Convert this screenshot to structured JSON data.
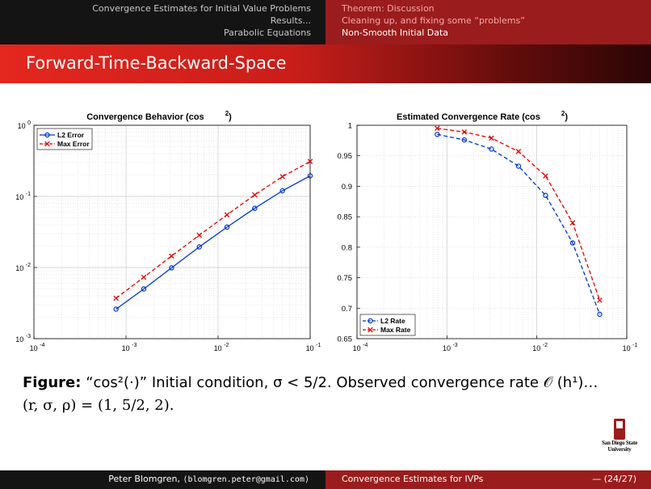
{
  "header": {
    "left_sections": [
      "Convergence Estimates for Initial Value Problems",
      "Results...",
      "Parabolic Equations"
    ],
    "right_sections": [
      "Theorem: Discussion",
      "Cleaning up, and fixing some “problems”",
      "Non-Smooth Initial Data"
    ],
    "active_right_index": 2
  },
  "frame_title": "Forward-Time-Backward-Space",
  "colors": {
    "dark_bar": "#141414",
    "red_bar": "#9b1c1c",
    "title_red": "#e4271f",
    "l2_series": "#0033cc",
    "max_series": "#e00000"
  },
  "chart_data": [
    {
      "type": "line",
      "title_left": "Convergence Behavior (cos",
      "title_sup": "2",
      "title_right": ")",
      "xscale": "log",
      "yscale": "log",
      "xlim": [
        0.0001,
        0.1
      ],
      "ylim": [
        0.001,
        1
      ],
      "x_ticks": [
        {
          "base": "10",
          "exp": "-4"
        },
        {
          "base": "10",
          "exp": "-3"
        },
        {
          "base": "10",
          "exp": "-2"
        },
        {
          "base": "10",
          "exp": "-1"
        }
      ],
      "y_ticks": [
        {
          "base": "10",
          "exp": "0"
        },
        {
          "base": "10",
          "exp": "-1"
        },
        {
          "base": "10",
          "exp": "-2"
        },
        {
          "base": "10",
          "exp": "-3"
        }
      ],
      "grid": true,
      "legend_position": "top-left",
      "series": [
        {
          "name": "L2 Error",
          "style": "solid-circle",
          "x": [
            0.00078,
            0.00156,
            0.003125,
            0.00625,
            0.0125,
            0.025,
            0.05,
            0.1
          ],
          "y": [
            0.0026,
            0.005,
            0.0099,
            0.0195,
            0.037,
            0.068,
            0.12,
            0.195
          ]
        },
        {
          "name": "Max Error",
          "style": "dashed-x",
          "x": [
            0.00078,
            0.00156,
            0.003125,
            0.00625,
            0.0125,
            0.025,
            0.05,
            0.1
          ],
          "y": [
            0.0037,
            0.0073,
            0.0145,
            0.0285,
            0.055,
            0.105,
            0.19,
            0.31
          ]
        }
      ]
    },
    {
      "type": "line",
      "title_left": "Estimated Convergence Rate (cos",
      "title_sup": "2",
      "title_right": ")",
      "xscale": "log",
      "yscale": "linear",
      "xlim": [
        0.0001,
        0.1
      ],
      "ylim": [
        0.65,
        1
      ],
      "x_ticks": [
        {
          "base": "10",
          "exp": "-4"
        },
        {
          "base": "10",
          "exp": "-3"
        },
        {
          "base": "10",
          "exp": "-2"
        },
        {
          "base": "10",
          "exp": "-1"
        }
      ],
      "y_ticks": [
        "1",
        "0.95",
        "0.9",
        "0.85",
        "0.8",
        "0.75",
        "0.7",
        "0.65"
      ],
      "y_tick_values": [
        1,
        0.95,
        0.9,
        0.85,
        0.8,
        0.75,
        0.7,
        0.65
      ],
      "grid": true,
      "legend_position": "bottom-left",
      "series": [
        {
          "name": "L2 Rate",
          "style": "dashed-circle",
          "x": [
            0.00078,
            0.00156,
            0.003125,
            0.00625,
            0.0125,
            0.025,
            0.05
          ],
          "y": [
            0.985,
            0.976,
            0.961,
            0.933,
            0.885,
            0.807,
            0.69
          ]
        },
        {
          "name": "Max Rate",
          "style": "dashed-x",
          "x": [
            0.00078,
            0.00156,
            0.003125,
            0.00625,
            0.0125,
            0.025,
            0.05
          ],
          "y": [
            0.995,
            0.989,
            0.979,
            0.957,
            0.917,
            0.84,
            0.713
          ]
        }
      ]
    }
  ],
  "caption": {
    "label": "Figure:",
    "line1": "“cos²(·)” Initial condition, σ < 5/2. Observed convergence rate 𝒪 (h¹)…",
    "line2": "(r, σ, ρ) = (1, 5/2, 2)."
  },
  "logo": {
    "line1": "San Diego State",
    "line2": "University"
  },
  "footer": {
    "author": "Peter Blomgren,",
    "email": "⟨blomgren.peter@gmail.com⟩",
    "short_title": "Convergence Estimates for IVPs",
    "page": "— (24/27)"
  }
}
